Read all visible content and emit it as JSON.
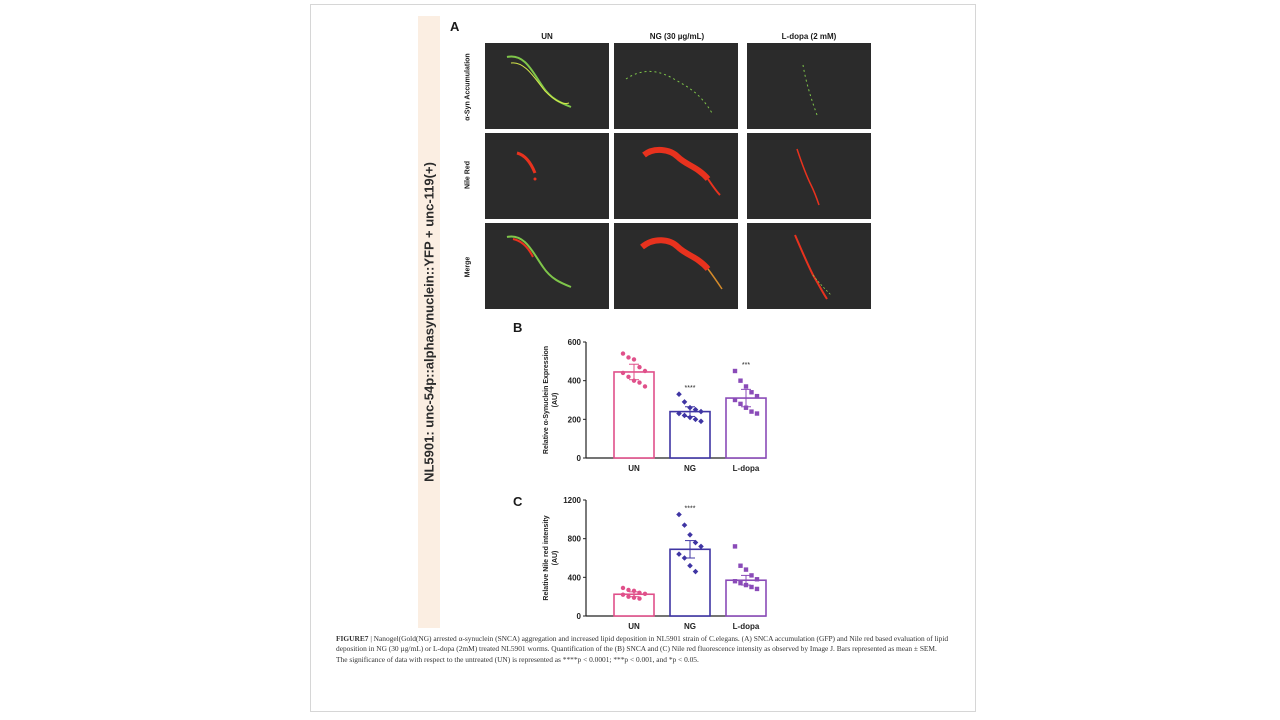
{
  "strain_label": "NL5901: unc-54p::alphasynuclein::YFP + unc-119(+)",
  "panels": {
    "a": "A",
    "b": "B",
    "c": "C"
  },
  "columns": [
    "UN",
    "NG (30 µg/mL)",
    "L-dopa (2 mM)"
  ],
  "rows": [
    "α-Syn Accumulation",
    "Nile Red",
    "Merge"
  ],
  "colors": {
    "un": "#e0508a",
    "ng": "#3f35a3",
    "ldopa": "#8a4bb8",
    "gfp": "#7fc64a",
    "red": "#e8321e",
    "field": "#2b2b2b"
  },
  "chart_data": [
    {
      "type": "bar",
      "title": "",
      "ylabel": "Relative α-Synuclein Expression (AU)",
      "categories": [
        "UN",
        "NG",
        "L-dopa"
      ],
      "values": [
        445,
        240,
        310
      ],
      "errors": [
        40,
        25,
        45
      ],
      "significance": [
        "",
        "****",
        "***"
      ],
      "ylim": [
        0,
        600
      ],
      "yticks": [
        "0",
        "200",
        "400",
        "600"
      ],
      "points": [
        [
          540,
          520,
          510,
          470,
          450,
          440,
          420,
          400,
          390,
          370
        ],
        [
          330,
          290,
          260,
          250,
          240,
          230,
          220,
          210,
          200,
          190
        ],
        [
          450,
          400,
          370,
          340,
          320,
          300,
          280,
          260,
          240,
          230
        ]
      ]
    },
    {
      "type": "bar",
      "title": "",
      "ylabel": "Relative Nile red intensity (AU)",
      "categories": [
        "UN",
        "NG",
        "L-dopa"
      ],
      "values": [
        225,
        690,
        370
      ],
      "errors": [
        25,
        90,
        50
      ],
      "significance": [
        "",
        "****",
        ""
      ],
      "ylim": [
        0,
        1200
      ],
      "yticks": [
        "0",
        "400",
        "800",
        "1200"
      ],
      "points": [
        [
          290,
          270,
          260,
          240,
          230,
          220,
          200,
          190,
          180
        ],
        [
          1050,
          940,
          840,
          760,
          720,
          640,
          600,
          520,
          460
        ],
        [
          720,
          520,
          480,
          420,
          380,
          360,
          340,
          320,
          300,
          280
        ]
      ]
    }
  ],
  "caption": {
    "label": "FIGURE7",
    "text": "| Nanogel(Gold(NG) arrested α-synuclein (SNCA) aggregation and increased lipid deposition in NL5901 strain of C.elegans. (A) SNCA accumulation (GFP) and Nile red based evaluation of lipid deposition in NG (30 µg/mL) or L-dopa (2mM) treated NL5901 worms. Quantification of the (B) SNCA and (C) Nile red fluorescence intensity as observed by Image J. Bars represented as mean ± SEM. The significance of data with respect to the untreated (UN) is represented as ****p < 0.0001; ***p < 0.001, and *p < 0.05."
  }
}
